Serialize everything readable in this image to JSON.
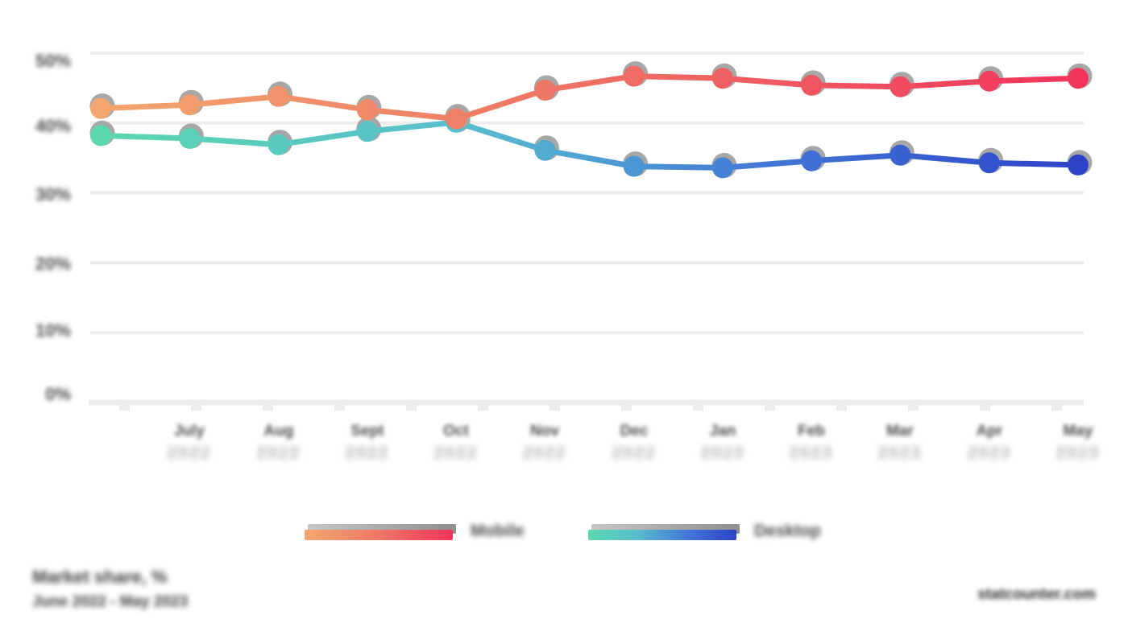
{
  "chart_data": {
    "type": "line",
    "title": "Market share, %",
    "subtitle": "June 2022 - May 2023",
    "source": "statcounter.com",
    "grid": true,
    "legend_position": "bottom",
    "ylim": [
      0,
      50
    ],
    "y_tick_labels": [
      "50%",
      "40%",
      "30%",
      "20%",
      "10%",
      "0%"
    ],
    "categories": [
      "",
      "July 2022",
      "Aug 2022",
      "Sept 2022",
      "Oct 2022",
      "Nov 2022",
      "Dec 2022",
      "Jan 2023",
      "Feb 2023",
      "Mar 2023",
      "Apr 2023",
      "May 2023"
    ],
    "x_labels": [
      {
        "month": "July",
        "year": "2022"
      },
      {
        "month": "Aug",
        "year": "2022"
      },
      {
        "month": "Sept",
        "year": "2022"
      },
      {
        "month": "Oct",
        "year": "2022"
      },
      {
        "month": "Nov",
        "year": "2022"
      },
      {
        "month": "Dec",
        "year": "2022"
      },
      {
        "month": "Jan",
        "year": "2023"
      },
      {
        "month": "Feb",
        "year": "2023"
      },
      {
        "month": "Mar",
        "year": "2023"
      },
      {
        "month": "Apr",
        "year": "2023"
      },
      {
        "month": "May",
        "year": "2023"
      }
    ],
    "series": [
      {
        "name": "Desktop",
        "values": [
          38.2,
          37.8,
          36.9,
          38.8,
          40.1,
          36.1,
          33.8,
          33.6,
          34.6,
          35.4,
          34.3,
          34.0
        ],
        "gradient_stops": [
          "#5BD8AE",
          "#57BDCE",
          "#4377D8",
          "#2C43C8"
        ],
        "gradient_offsets": [
          0,
          0.38,
          0.68,
          1
        ]
      },
      {
        "name": "Mobile",
        "values": [
          42.1,
          42.6,
          43.8,
          41.9,
          40.6,
          44.7,
          46.7,
          46.4,
          45.4,
          45.2,
          46.0,
          46.4
        ],
        "gradient_stops": [
          "#F4A76F",
          "#EE7765",
          "#F2345C"
        ],
        "gradient_offsets": [
          0,
          0.45,
          1
        ]
      }
    ]
  },
  "legend": {
    "items": [
      {
        "label": "Mobile",
        "colors": [
          "#F4A76F",
          "#EE7765",
          "#F2345C"
        ]
      },
      {
        "label": "Desktop",
        "colors": [
          "#5BD8AE",
          "#57BDCE",
          "#4377D8",
          "#2C43C8"
        ]
      }
    ]
  },
  "footer": {
    "left_line1": "Market share, %",
    "left_line2": "June 2022 - May 2023",
    "right": "statcounter.com"
  },
  "style": {
    "grid_color": "#ededed",
    "axis_color": "#ececec",
    "shadow_color": "#a7a7a7",
    "background": "#ffffff"
  }
}
